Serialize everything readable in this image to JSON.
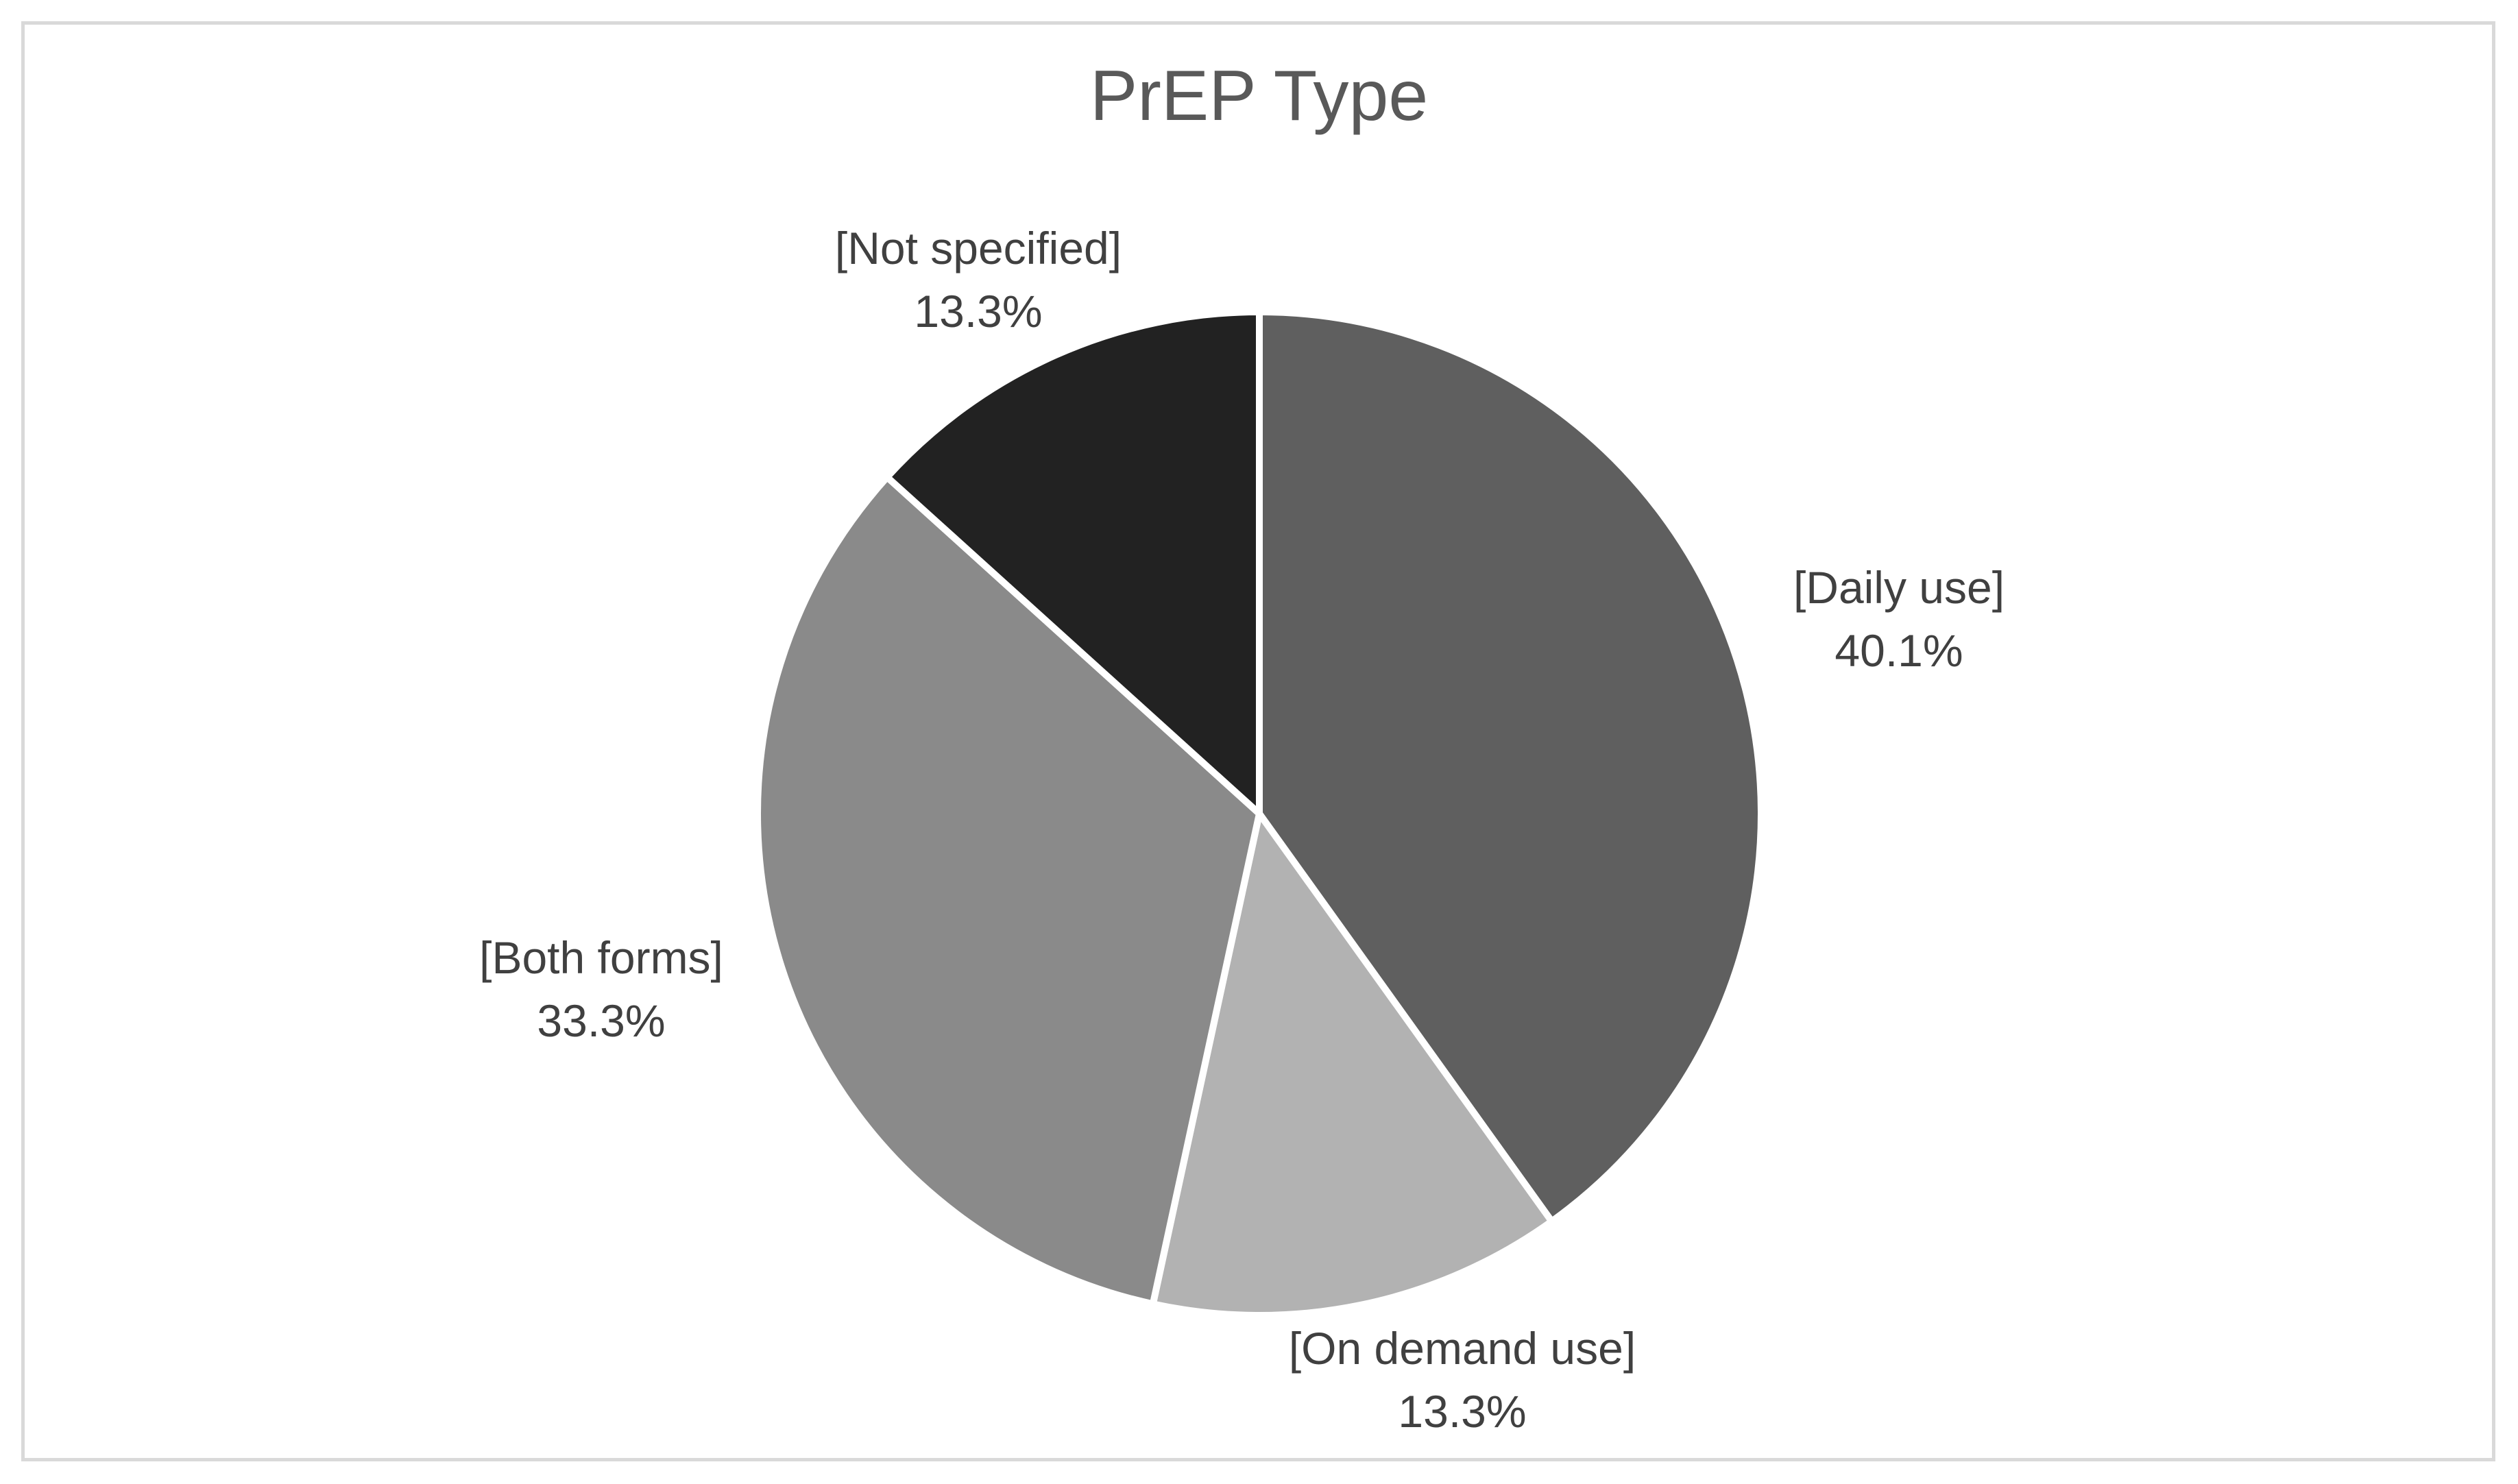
{
  "chart_data": {
    "type": "pie",
    "title": "PrEP Type",
    "categories": [
      "[Daily use]",
      "[On demand use]",
      "[Both forms]",
      "[Not specified]"
    ],
    "values": [
      40.1,
      13.3,
      33.3,
      13.3
    ],
    "value_labels": [
      "40.1%",
      "13.3%",
      "33.3%",
      "13.3%"
    ],
    "colors": [
      "#5f5f5f",
      "#b2b2b2",
      "#8a8a8a",
      "#222222"
    ],
    "start_angle_deg": 0,
    "direction": "clockwise",
    "legend": "none",
    "data_labels": "outside"
  }
}
